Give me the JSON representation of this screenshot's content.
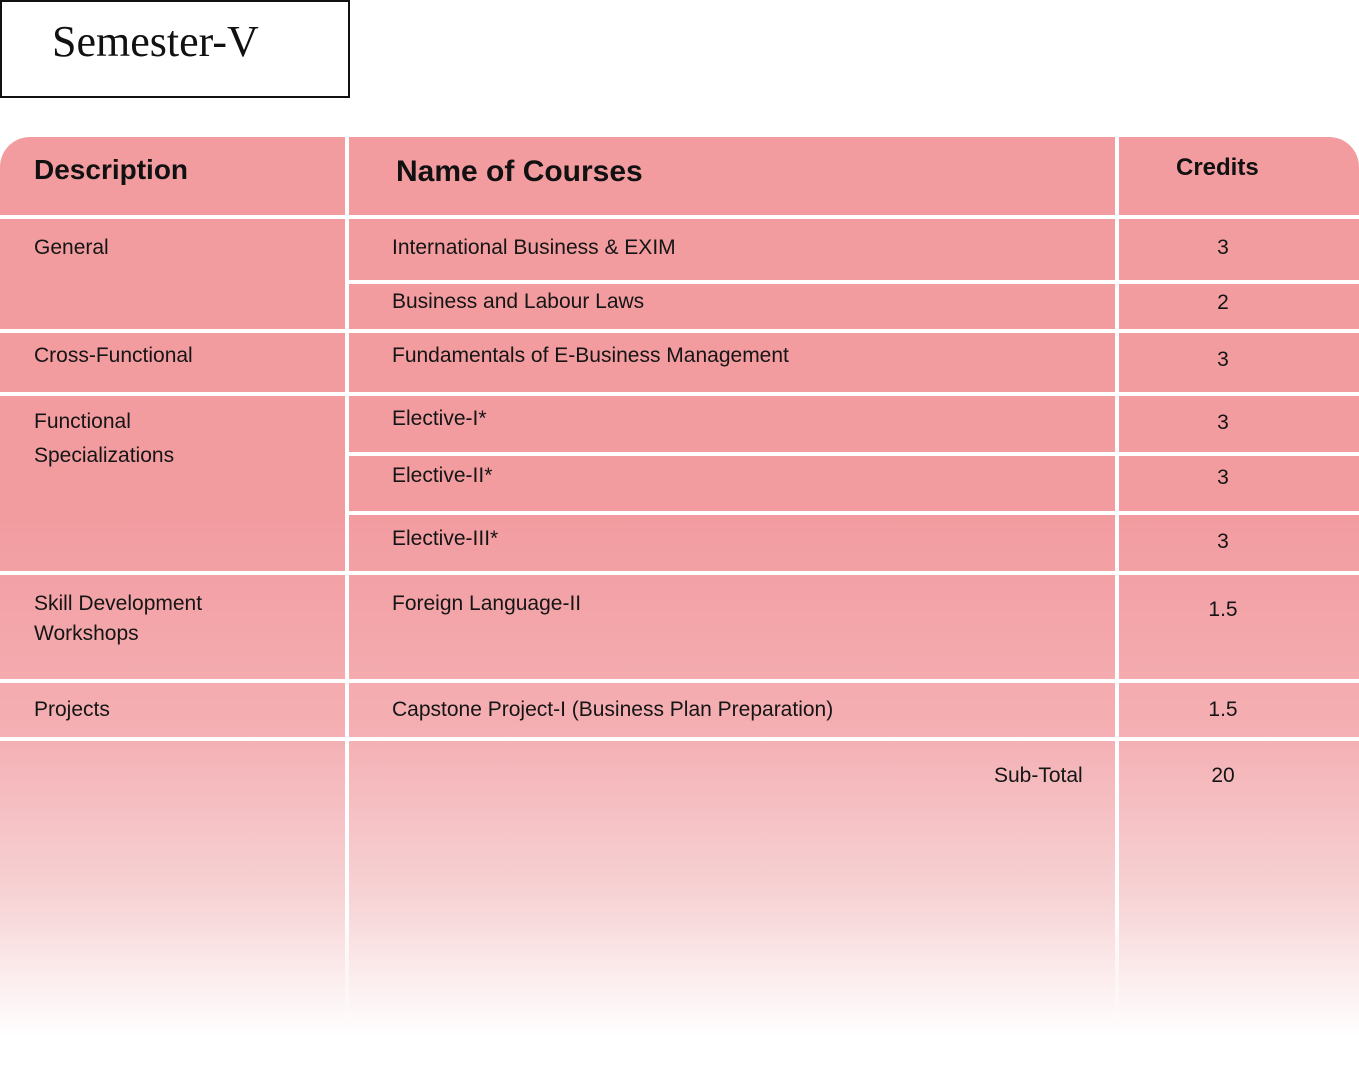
{
  "semester": {
    "title": "Semester-V"
  },
  "table": {
    "headers": {
      "description": "Description",
      "courses": "Name of Courses",
      "credits": "Credits"
    },
    "groups": [
      {
        "description": "General",
        "rows": [
          {
            "course": "International Business & EXIM",
            "credits": "3"
          },
          {
            "course": "Business and Labour Laws",
            "credits": "2"
          }
        ]
      },
      {
        "description": "Cross-Functional",
        "rows": [
          {
            "course": "Fundamentals of E-Business Management",
            "credits": "3"
          }
        ]
      },
      {
        "description_lines": [
          "Functional",
          "Specializations"
        ],
        "rows": [
          {
            "course": "Elective-I*",
            "credits": "3"
          },
          {
            "course": "Elective-II*",
            "credits": "3"
          },
          {
            "course": "Elective-III*",
            "credits": "3"
          }
        ]
      },
      {
        "description_lines": [
          "Skill Development",
          "Workshops"
        ],
        "rows": [
          {
            "course": "Foreign Language-II",
            "credits": "1.5"
          }
        ]
      },
      {
        "description": "Projects",
        "rows": [
          {
            "course": "Capstone Project-I (Business Plan Preparation)",
            "credits": "1.5"
          }
        ]
      }
    ],
    "subtotal": {
      "label": "Sub-Total",
      "credits": "20"
    }
  },
  "colors": {
    "table_fill": "#f29ca0",
    "grid_lines": "#ffffff"
  }
}
